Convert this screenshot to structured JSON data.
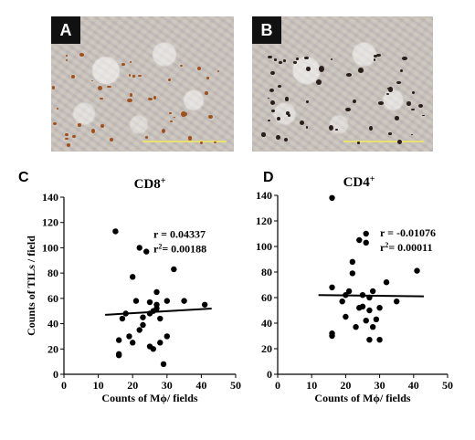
{
  "panels": {
    "a_label": "A",
    "b_label": "B",
    "c_label": "C",
    "d_label": "D"
  },
  "chart_data": [
    {
      "type": "scatter",
      "title": "CD8",
      "title_sup": "+",
      "xlabel": "Counts of Mϕ/ fields",
      "ylabel": "Counts of TILs / field",
      "xlim": [
        0,
        50
      ],
      "ylim": [
        0,
        140
      ],
      "xticks": [
        "0",
        "10",
        "20",
        "30",
        "40",
        "50"
      ],
      "yticks": [
        "0",
        "20",
        "40",
        "60",
        "80",
        "100",
        "120",
        "140"
      ],
      "annotation_r": "r =  0.04337",
      "annotation_r2_prefix": "r",
      "annotation_r2_sup": "2",
      "annotation_r2_value": "= 0.00188",
      "fit_line": [
        [
          12,
          47
        ],
        [
          43,
          52
        ]
      ],
      "points": [
        [
          15,
          113
        ],
        [
          16,
          16
        ],
        [
          16,
          27
        ],
        [
          16,
          15
        ],
        [
          17,
          44
        ],
        [
          18,
          48
        ],
        [
          19,
          30
        ],
        [
          20,
          77
        ],
        [
          20,
          25
        ],
        [
          21,
          58
        ],
        [
          22,
          100
        ],
        [
          22,
          35
        ],
        [
          23,
          45
        ],
        [
          23,
          39
        ],
        [
          24,
          97
        ],
        [
          25,
          48
        ],
        [
          25,
          57
        ],
        [
          25,
          22
        ],
        [
          26,
          50
        ],
        [
          26,
          20
        ],
        [
          27,
          52
        ],
        [
          27,
          65
        ],
        [
          27,
          55
        ],
        [
          28,
          44
        ],
        [
          28,
          25
        ],
        [
          29,
          8
        ],
        [
          30,
          58
        ],
        [
          30,
          30
        ],
        [
          32,
          83
        ],
        [
          35,
          58
        ],
        [
          41,
          55
        ]
      ]
    },
    {
      "type": "scatter",
      "title": "CD4",
      "title_sup": "+",
      "xlabel": "Counts of Mϕ/ fields",
      "ylabel": "",
      "xlim": [
        0,
        50
      ],
      "ylim": [
        0,
        140
      ],
      "xticks": [
        "0",
        "10",
        "20",
        "30",
        "40",
        "50"
      ],
      "yticks": [
        "0",
        "20",
        "40",
        "60",
        "80",
        "100",
        "120",
        "140"
      ],
      "annotation_r": "r =  -0.01076",
      "annotation_r2_prefix": "r",
      "annotation_r2_sup": "2",
      "annotation_r2_value": "= 0.00011",
      "fit_line": [
        [
          12,
          62
        ],
        [
          43,
          61
        ]
      ],
      "points": [
        [
          16,
          138
        ],
        [
          16,
          32
        ],
        [
          16,
          30
        ],
        [
          16,
          68
        ],
        [
          19,
          57
        ],
        [
          20,
          45
        ],
        [
          20,
          62
        ],
        [
          21,
          65
        ],
        [
          22,
          79
        ],
        [
          22,
          88
        ],
        [
          23,
          37
        ],
        [
          24,
          52
        ],
        [
          24,
          105
        ],
        [
          25,
          62
        ],
        [
          25,
          53
        ],
        [
          26,
          110
        ],
        [
          26,
          42
        ],
        [
          26,
          103
        ],
        [
          27,
          60
        ],
        [
          27,
          27
        ],
        [
          27,
          50
        ],
        [
          28,
          65
        ],
        [
          28,
          37
        ],
        [
          29,
          43
        ],
        [
          30,
          27
        ],
        [
          30,
          52
        ],
        [
          32,
          72
        ],
        [
          35,
          57
        ],
        [
          41,
          81
        ]
      ]
    }
  ]
}
